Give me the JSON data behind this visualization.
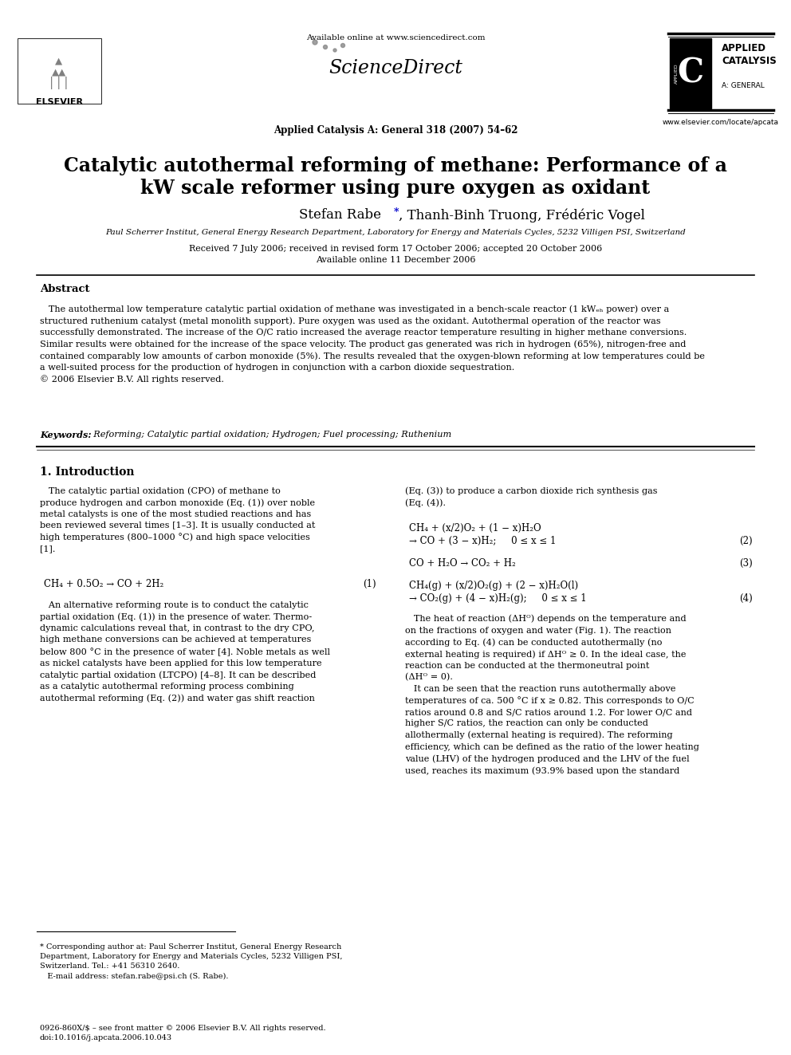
{
  "title_line1": "Catalytic autothermal reforming of methane: Performance of a",
  "title_line2": "kW scale reformer using pure oxygen as oxidant",
  "authors_pre": "Stefan Rabe ",
  "authors_post": ", Thanh-Binh Truong, Frédéric Vogel",
  "affiliation": "Paul Scherrer Institut, General Energy Research Department, Laboratory for Energy and Materials Cycles, 5232 Villigen PSI, Switzerland",
  "received": "Received 7 July 2006; received in revised form 17 October 2006; accepted 20 October 2006",
  "available": "Available online 11 December 2006",
  "journal": "Applied Catalysis A: General 318 (2007) 54–62",
  "sciencedirect_url": "Available online at www.sciencedirect.com",
  "elsevier_url": "www.elsevier.com/locate/apcata",
  "abstract_title": "Abstract",
  "keywords_label": "Keywords:",
  "keywords_text": "  Reforming; Catalytic partial oxidation; Hydrogen; Fuel processing; Ruthenium",
  "section1_title": "1. Introduction",
  "bg_color": "#ffffff",
  "text_color": "#000000",
  "link_color": "#0000cc"
}
